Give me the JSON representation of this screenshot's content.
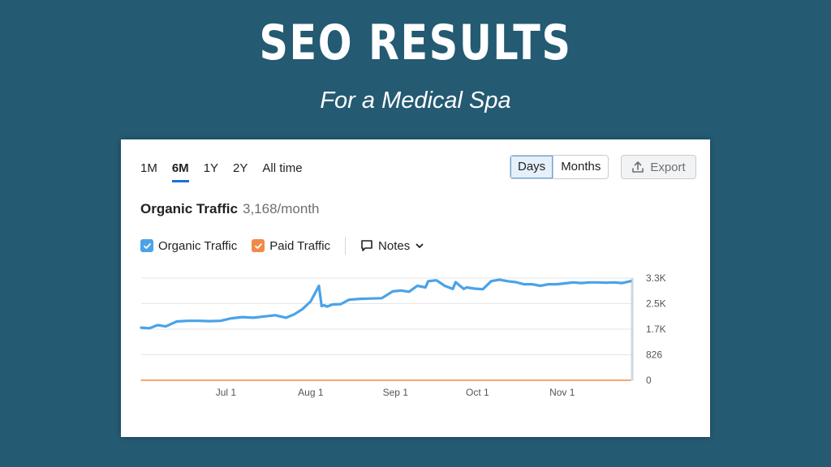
{
  "headline": "SEO RESULTS",
  "subheadline": "For a Medical Spa",
  "colors": {
    "background": "#245a72",
    "accent": "#1e6fd9",
    "organic": "#4aa3e8",
    "paid": "#f2894a"
  },
  "toolbar": {
    "ranges": [
      "1M",
      "6M",
      "1Y",
      "2Y",
      "All time"
    ],
    "active_range": "6M",
    "granularity": [
      "Days",
      "Months"
    ],
    "active_granularity": "Days",
    "export_label": "Export",
    "export_icon": "upload-icon"
  },
  "metric": {
    "name": "Organic Traffic",
    "value": "3,168/month"
  },
  "legend": {
    "organic_label": "Organic Traffic",
    "paid_label": "Paid Traffic",
    "notes_label": "Notes",
    "notes_icon": "comment-icon",
    "notes_dropdown_icon": "chevron-down-icon"
  },
  "chart_data": {
    "type": "line",
    "title": "Organic Traffic",
    "xlabel": "",
    "ylabel": "",
    "x_tick_labels": [
      "Jul 1",
      "Aug 1",
      "Sep 1",
      "Oct 1",
      "Nov 1"
    ],
    "y_tick_labels": [
      "0",
      "826",
      "1.7K",
      "2.5K",
      "3.3K"
    ],
    "ylim": [
      0,
      3300
    ],
    "grid": true,
    "x": [
      "May 31",
      "Jun 3",
      "Jun 6",
      "Jun 9",
      "Jun 13",
      "Jun 17",
      "Jun 21",
      "Jun 25",
      "Jun 29",
      "Jul 3",
      "Jul 7",
      "Jul 11",
      "Jul 15",
      "Jul 19",
      "Jul 23",
      "Jul 26",
      "Jul 29",
      "Aug 1",
      "Aug 4",
      "Aug 5",
      "Aug 6",
      "Aug 7",
      "Aug 9",
      "Aug 12",
      "Aug 15",
      "Aug 19",
      "Aug 23",
      "Aug 27",
      "Aug 31",
      "Sep 3",
      "Sep 6",
      "Sep 9",
      "Sep 12",
      "Sep 13",
      "Sep 16",
      "Sep 19",
      "Sep 22",
      "Sep 23",
      "Sep 26",
      "Sep 27",
      "Sep 30",
      "Oct 3",
      "Oct 6",
      "Oct 9",
      "Oct 12",
      "Oct 15",
      "Oct 18",
      "Oct 21",
      "Oct 24",
      "Oct 27",
      "Oct 30",
      "Nov 2",
      "Nov 5",
      "Nov 8",
      "Nov 11",
      "Nov 14",
      "Nov 17",
      "Nov 20",
      "Nov 23",
      "Nov 26"
    ],
    "series": [
      {
        "name": "Organic Traffic",
        "values": [
          1700,
          1680,
          1780,
          1740,
          1900,
          1920,
          1920,
          1910,
          1920,
          2000,
          2040,
          2020,
          2060,
          2100,
          2020,
          2130,
          2300,
          2550,
          3050,
          2400,
          2420,
          2380,
          2450,
          2460,
          2600,
          2630,
          2640,
          2650,
          2870,
          2900,
          2860,
          3050,
          3000,
          3200,
          3230,
          3050,
          2950,
          3170,
          2950,
          3000,
          2960,
          2940,
          3200,
          3250,
          3200,
          3170,
          3100,
          3100,
          3050,
          3100,
          3100,
          3130,
          3160,
          3140,
          3160,
          3160,
          3150,
          3160,
          3140,
          3200
        ]
      },
      {
        "name": "Paid Traffic",
        "values": [
          0,
          0,
          0,
          0,
          0,
          0,
          0,
          0,
          0,
          0,
          0,
          0,
          0,
          0,
          0,
          0,
          0,
          0,
          0,
          0,
          0,
          0,
          0,
          0,
          0,
          0,
          0,
          0,
          0,
          0,
          0,
          0,
          0,
          0,
          0,
          0,
          0,
          0,
          0,
          0,
          0,
          0,
          0,
          0,
          0,
          0,
          0,
          0,
          0,
          0,
          0,
          0,
          0,
          0,
          0,
          0,
          0,
          0,
          0,
          0
        ]
      }
    ]
  }
}
